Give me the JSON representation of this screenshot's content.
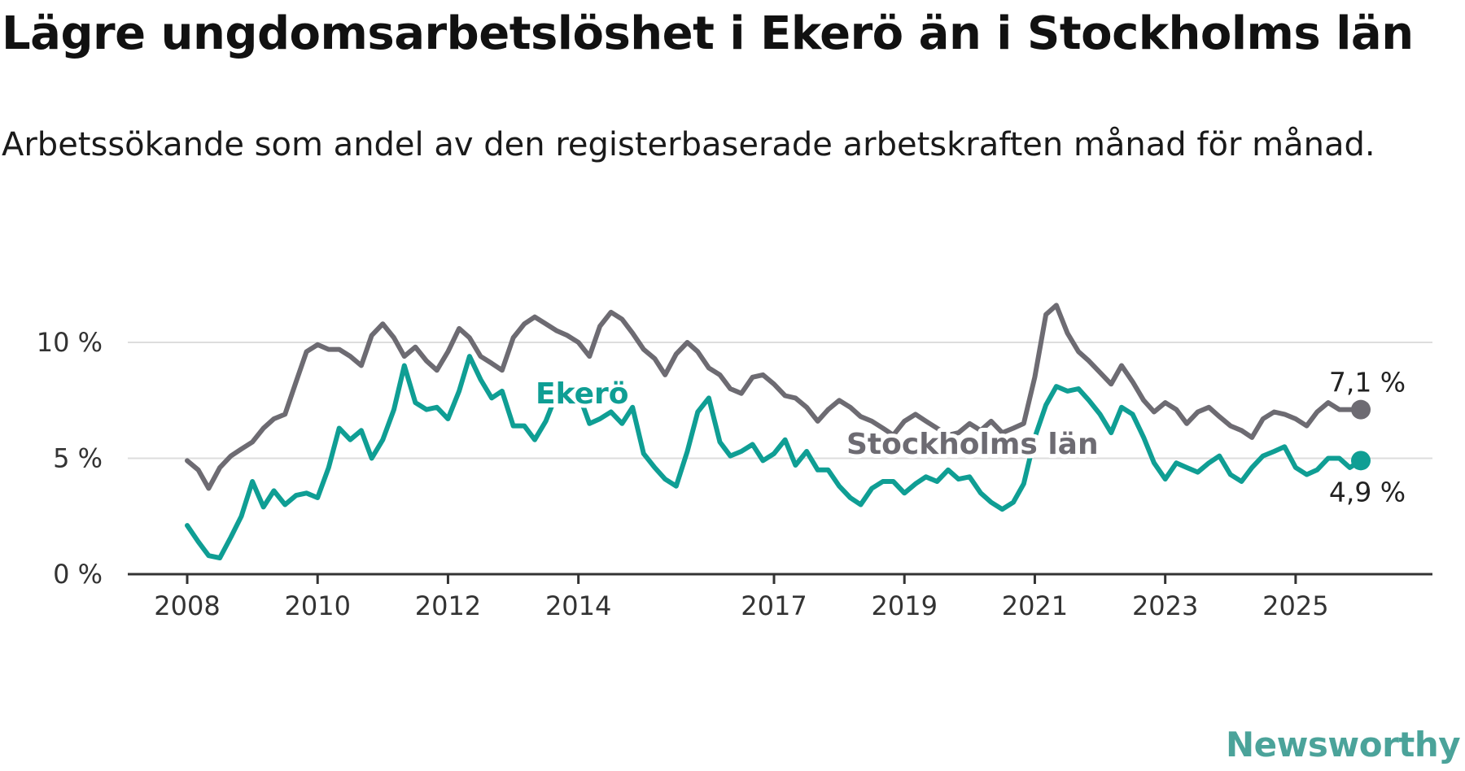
{
  "header": {
    "title": "Lägre ungdomsarbetslöshet i Ekerö än i Stockholms län",
    "subtitle": "Arbetssökande som andel av den registerbaserade arbetskraften månad för månad."
  },
  "brand": {
    "name": "Newsworthy",
    "icon": "bar-chart-bubble-icon",
    "color": "#4ba39a"
  },
  "chart_data": {
    "type": "line",
    "title": "Lägre ungdomsarbetslöshet i Ekerö än i Stockholms län",
    "subtitle": "Arbetssökande som andel av den registerbaserade arbetskraften månad för månad.",
    "xlabel": "",
    "ylabel": "",
    "x_ticks": [
      "2008",
      "2010",
      "2012",
      "2014",
      "2017",
      "2019",
      "2021",
      "2023",
      "2025"
    ],
    "y_ticks": [
      "0 %",
      "5 %",
      "10 %"
    ],
    "ylim": [
      0,
      12
    ],
    "grid": true,
    "series": [
      {
        "name": "Stockholms län",
        "color": "#6d6b72",
        "end_label": "7,1 %",
        "points": [
          [
            2008.0,
            4.9
          ],
          [
            2008.17,
            4.5
          ],
          [
            2008.33,
            3.7
          ],
          [
            2008.5,
            4.6
          ],
          [
            2008.67,
            5.1
          ],
          [
            2008.83,
            5.4
          ],
          [
            2009.0,
            5.7
          ],
          [
            2009.17,
            6.3
          ],
          [
            2009.33,
            6.7
          ],
          [
            2009.5,
            6.9
          ],
          [
            2009.67,
            8.3
          ],
          [
            2009.83,
            9.6
          ],
          [
            2010.0,
            9.9
          ],
          [
            2010.17,
            9.7
          ],
          [
            2010.33,
            9.7
          ],
          [
            2010.5,
            9.4
          ],
          [
            2010.67,
            9.0
          ],
          [
            2010.83,
            10.3
          ],
          [
            2011.0,
            10.8
          ],
          [
            2011.17,
            10.2
          ],
          [
            2011.33,
            9.4
          ],
          [
            2011.5,
            9.8
          ],
          [
            2011.67,
            9.2
          ],
          [
            2011.83,
            8.8
          ],
          [
            2012.0,
            9.6
          ],
          [
            2012.17,
            10.6
          ],
          [
            2012.33,
            10.2
          ],
          [
            2012.5,
            9.4
          ],
          [
            2012.67,
            9.1
          ],
          [
            2012.83,
            8.8
          ],
          [
            2013.0,
            10.2
          ],
          [
            2013.17,
            10.8
          ],
          [
            2013.33,
            11.1
          ],
          [
            2013.5,
            10.8
          ],
          [
            2013.67,
            10.5
          ],
          [
            2013.83,
            10.3
          ],
          [
            2014.0,
            10.0
          ],
          [
            2014.17,
            9.4
          ],
          [
            2014.33,
            10.7
          ],
          [
            2014.5,
            11.3
          ],
          [
            2014.67,
            11.0
          ],
          [
            2014.83,
            10.4
          ],
          [
            2015.0,
            9.7
          ],
          [
            2015.17,
            9.3
          ],
          [
            2015.33,
            8.6
          ],
          [
            2015.5,
            9.5
          ],
          [
            2015.67,
            10.0
          ],
          [
            2015.83,
            9.6
          ],
          [
            2016.0,
            8.9
          ],
          [
            2016.17,
            8.6
          ],
          [
            2016.33,
            8.0
          ],
          [
            2016.5,
            7.8
          ],
          [
            2016.67,
            8.5
          ],
          [
            2016.83,
            8.6
          ],
          [
            2017.0,
            8.2
          ],
          [
            2017.17,
            7.7
          ],
          [
            2017.33,
            7.6
          ],
          [
            2017.5,
            7.2
          ],
          [
            2017.67,
            6.6
          ],
          [
            2017.83,
            7.1
          ],
          [
            2018.0,
            7.5
          ],
          [
            2018.17,
            7.2
          ],
          [
            2018.33,
            6.8
          ],
          [
            2018.5,
            6.6
          ],
          [
            2018.67,
            6.3
          ],
          [
            2018.83,
            6.0
          ],
          [
            2019.0,
            6.6
          ],
          [
            2019.17,
            6.9
          ],
          [
            2019.33,
            6.6
          ],
          [
            2019.5,
            6.3
          ],
          [
            2019.67,
            6.0
          ],
          [
            2019.83,
            6.1
          ],
          [
            2020.0,
            6.5
          ],
          [
            2020.17,
            6.2
          ],
          [
            2020.33,
            6.6
          ],
          [
            2020.5,
            6.1
          ],
          [
            2020.67,
            6.3
          ],
          [
            2020.83,
            6.5
          ],
          [
            2021.0,
            8.5
          ],
          [
            2021.17,
            11.2
          ],
          [
            2021.33,
            11.6
          ],
          [
            2021.5,
            10.4
          ],
          [
            2021.67,
            9.6
          ],
          [
            2021.83,
            9.2
          ],
          [
            2022.0,
            8.7
          ],
          [
            2022.17,
            8.2
          ],
          [
            2022.33,
            9.0
          ],
          [
            2022.5,
            8.3
          ],
          [
            2022.67,
            7.5
          ],
          [
            2022.83,
            7.0
          ],
          [
            2023.0,
            7.4
          ],
          [
            2023.17,
            7.1
          ],
          [
            2023.33,
            6.5
          ],
          [
            2023.5,
            7.0
          ],
          [
            2023.67,
            7.2
          ],
          [
            2023.83,
            6.8
          ],
          [
            2024.0,
            6.4
          ],
          [
            2024.17,
            6.2
          ],
          [
            2024.33,
            5.9
          ],
          [
            2024.5,
            6.7
          ],
          [
            2024.67,
            7.0
          ],
          [
            2024.83,
            6.9
          ],
          [
            2025.0,
            6.7
          ],
          [
            2025.17,
            6.4
          ],
          [
            2025.33,
            7.0
          ],
          [
            2025.5,
            7.4
          ],
          [
            2025.67,
            7.1
          ],
          [
            2025.83,
            7.1
          ],
          [
            2026.0,
            7.1
          ]
        ]
      },
      {
        "name": "Ekerö",
        "color": "#0f9e94",
        "end_label": "4,9 %",
        "points": [
          [
            2008.0,
            2.1
          ],
          [
            2008.17,
            1.4
          ],
          [
            2008.33,
            0.8
          ],
          [
            2008.5,
            0.7
          ],
          [
            2008.67,
            1.6
          ],
          [
            2008.83,
            2.5
          ],
          [
            2009.0,
            4.0
          ],
          [
            2009.17,
            2.9
          ],
          [
            2009.33,
            3.6
          ],
          [
            2009.5,
            3.0
          ],
          [
            2009.67,
            3.4
          ],
          [
            2009.83,
            3.5
          ],
          [
            2010.0,
            3.3
          ],
          [
            2010.17,
            4.6
          ],
          [
            2010.33,
            6.3
          ],
          [
            2010.5,
            5.8
          ],
          [
            2010.67,
            6.2
          ],
          [
            2010.83,
            5.0
          ],
          [
            2011.0,
            5.8
          ],
          [
            2011.17,
            7.1
          ],
          [
            2011.33,
            9.0
          ],
          [
            2011.5,
            7.4
          ],
          [
            2011.67,
            7.1
          ],
          [
            2011.83,
            7.2
          ],
          [
            2012.0,
            6.7
          ],
          [
            2012.17,
            7.9
          ],
          [
            2012.33,
            9.4
          ],
          [
            2012.5,
            8.4
          ],
          [
            2012.67,
            7.6
          ],
          [
            2012.83,
            7.9
          ],
          [
            2013.0,
            6.4
          ],
          [
            2013.17,
            6.4
          ],
          [
            2013.33,
            5.8
          ],
          [
            2013.5,
            6.6
          ],
          [
            2013.67,
            7.8
          ],
          [
            2013.83,
            7.8
          ],
          [
            2014.0,
            7.8
          ],
          [
            2014.17,
            6.5
          ],
          [
            2014.33,
            6.7
          ],
          [
            2014.5,
            7.0
          ],
          [
            2014.67,
            6.5
          ],
          [
            2014.83,
            7.2
          ],
          [
            2015.0,
            5.2
          ],
          [
            2015.17,
            4.6
          ],
          [
            2015.33,
            4.1
          ],
          [
            2015.5,
            3.8
          ],
          [
            2015.67,
            5.3
          ],
          [
            2015.83,
            7.0
          ],
          [
            2016.0,
            7.6
          ],
          [
            2016.17,
            5.7
          ],
          [
            2016.33,
            5.1
          ],
          [
            2016.5,
            5.3
          ],
          [
            2016.67,
            5.6
          ],
          [
            2016.83,
            4.9
          ],
          [
            2017.0,
            5.2
          ],
          [
            2017.17,
            5.8
          ],
          [
            2017.33,
            4.7
          ],
          [
            2017.5,
            5.3
          ],
          [
            2017.67,
            4.5
          ],
          [
            2017.83,
            4.5
          ],
          [
            2018.0,
            3.8
          ],
          [
            2018.17,
            3.3
          ],
          [
            2018.33,
            3.0
          ],
          [
            2018.5,
            3.7
          ],
          [
            2018.67,
            4.0
          ],
          [
            2018.83,
            4.0
          ],
          [
            2019.0,
            3.5
          ],
          [
            2019.17,
            3.9
          ],
          [
            2019.33,
            4.2
          ],
          [
            2019.5,
            4.0
          ],
          [
            2019.67,
            4.5
          ],
          [
            2019.83,
            4.1
          ],
          [
            2020.0,
            4.2
          ],
          [
            2020.17,
            3.5
          ],
          [
            2020.33,
            3.1
          ],
          [
            2020.5,
            2.8
          ],
          [
            2020.67,
            3.1
          ],
          [
            2020.83,
            3.9
          ],
          [
            2021.0,
            5.9
          ],
          [
            2021.17,
            7.3
          ],
          [
            2021.33,
            8.1
          ],
          [
            2021.5,
            7.9
          ],
          [
            2021.67,
            8.0
          ],
          [
            2021.83,
            7.5
          ],
          [
            2022.0,
            6.9
          ],
          [
            2022.17,
            6.1
          ],
          [
            2022.33,
            7.2
          ],
          [
            2022.5,
            6.9
          ],
          [
            2022.67,
            5.9
          ],
          [
            2022.83,
            4.8
          ],
          [
            2023.0,
            4.1
          ],
          [
            2023.17,
            4.8
          ],
          [
            2023.33,
            4.6
          ],
          [
            2023.5,
            4.4
          ],
          [
            2023.67,
            4.8
          ],
          [
            2023.83,
            5.1
          ],
          [
            2024.0,
            4.3
          ],
          [
            2024.17,
            4.0
          ],
          [
            2024.33,
            4.6
          ],
          [
            2024.5,
            5.1
          ],
          [
            2024.67,
            5.3
          ],
          [
            2024.83,
            5.5
          ],
          [
            2025.0,
            4.6
          ],
          [
            2025.17,
            4.3
          ],
          [
            2025.33,
            4.5
          ],
          [
            2025.5,
            5.0
          ],
          [
            2025.67,
            5.0
          ],
          [
            2025.83,
            4.6
          ],
          [
            2026.0,
            4.9
          ]
        ]
      }
    ]
  }
}
